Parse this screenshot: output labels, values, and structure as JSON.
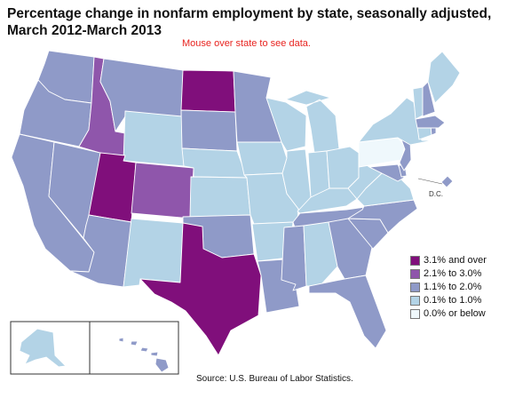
{
  "title": "Percentage change in nonfarm employment by state, seasonally adjusted,\nMarch 2012-March 2013",
  "instruction": "Mouse over state to see data.",
  "source": "Source:  U.S. Bureau of Labor Statistics.",
  "dc_label": "D.C.",
  "colors": {
    "c1": "#800f7b",
    "c2": "#8f56ab",
    "c3": "#8f9ac8",
    "c4": "#b3d3e6",
    "c5": "#eff8fc",
    "outline": "#ffffff"
  },
  "legend": [
    {
      "label": "3.1% and over",
      "color": "#800f7b"
    },
    {
      "label": "2.1% to 3.0%",
      "color": "#8f56ab"
    },
    {
      "label": "1.1% to 2.0%",
      "color": "#8f9ac8"
    },
    {
      "label": "0.1% to 1.0%",
      "color": "#b3d3e6"
    },
    {
      "label": "0.0% or below",
      "color": "#eff8fc"
    }
  ],
  "state_classes": {
    "WA": "c3",
    "OR": "c3",
    "CA": "c3",
    "NV": "c3",
    "ID": "c2",
    "MT": "c3",
    "WY": "c4",
    "UT": "c1",
    "CO": "c2",
    "AZ": "c3",
    "NM": "c4",
    "ND": "c1",
    "SD": "c3",
    "NE": "c4",
    "KS": "c4",
    "OK": "c3",
    "TX": "c1",
    "MN": "c3",
    "IA": "c4",
    "MO": "c4",
    "AR": "c4",
    "LA": "c3",
    "WI": "c4",
    "IL": "c4",
    "MI": "c4",
    "IN": "c4",
    "OH": "c4",
    "KY": "c4",
    "TN": "c3",
    "MS": "c3",
    "AL": "c4",
    "GA": "c3",
    "FL": "c3",
    "SC": "c3",
    "NC": "c3",
    "VA": "c4",
    "WV": "c4",
    "MD": "c3",
    "DE": "c3",
    "PA": "c5",
    "NJ": "c3",
    "NY": "c4",
    "CT": "c4",
    "RI": "c3",
    "MA": "c3",
    "VT": "c4",
    "NH": "c3",
    "ME": "c4",
    "DC": "c3",
    "AK": "c4",
    "HI": "c3"
  }
}
